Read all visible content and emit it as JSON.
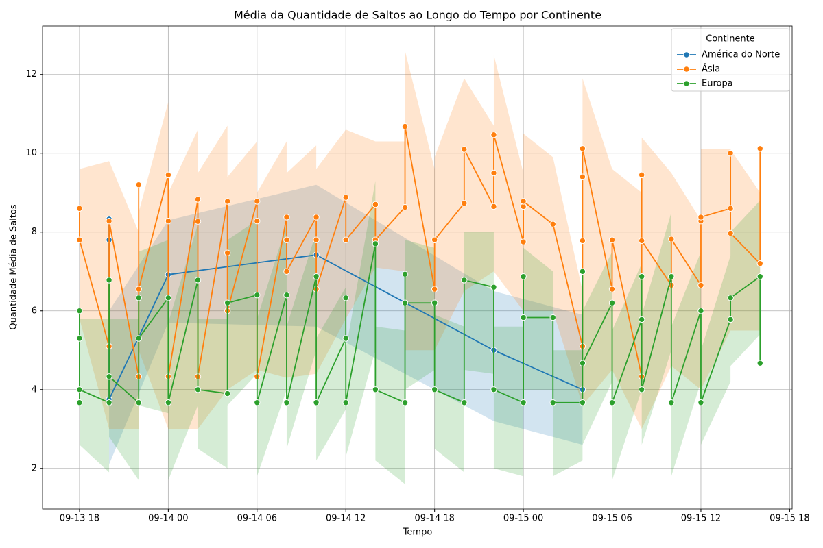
{
  "chart_data": {
    "type": "line",
    "title": "Média da Quantidade de Saltos ao Longo do Tempo por Continente",
    "x_label": "Tempo",
    "y_label": "Quantidade Média de Saltos",
    "legend_title": "Continente",
    "legend": "upper right",
    "grid": true,
    "xlim": [
      "09-13 15:30",
      "09-15 18:10"
    ],
    "xticks": [
      "09-13 18",
      "09-14 00",
      "09-14 06",
      "09-14 12",
      "09-14 18",
      "09-15 00",
      "09-15 06",
      "09-15 12",
      "09-15 18"
    ],
    "ylim": [
      0.97,
      13.23
    ],
    "yticks": [
      2,
      4,
      6,
      8,
      10,
      12
    ],
    "series": [
      {
        "name": "América do Norte",
        "color": "#1f77b4",
        "x": [
          "09-13 20",
          "09-13 20",
          "09-13 20",
          "09-14 00",
          "09-14 10",
          "09-14 22",
          "09-15 04"
        ],
        "values": [
          8.33,
          7.8,
          3.75,
          6.92,
          7.42,
          5.0,
          4.0
        ],
        "ci_low": [
          2.1,
          2.1,
          2.1,
          5.7,
          5.6,
          3.2,
          2.6
        ],
        "ci_high": [
          9.8,
          9.8,
          6.0,
          8.3,
          9.2,
          6.5,
          5.9
        ]
      },
      {
        "name": "Ásia",
        "color": "#ff7f0e",
        "x": [
          "09-13 18",
          "09-13 18",
          "09-13 20",
          "09-13 20",
          "09-13 22",
          "09-13 22",
          "09-13 22",
          "09-14 00",
          "09-14 00",
          "09-14 00",
          "09-14 02",
          "09-14 02",
          "09-14 02",
          "09-14 04",
          "09-14 04",
          "09-14 04",
          "09-14 06",
          "09-14 06",
          "09-14 06",
          "09-14 08",
          "09-14 08",
          "09-14 08",
          "09-14 10",
          "09-14 10",
          "09-14 10",
          "09-14 12",
          "09-14 12",
          "09-14 14",
          "09-14 14",
          "09-14 16",
          "09-14 16",
          "09-14 18",
          "09-14 18",
          "09-14 20",
          "09-14 20",
          "09-14 22",
          "09-14 22",
          "09-14 22",
          "09-15 00",
          "09-15 00",
          "09-15 00",
          "09-15 02",
          "09-15 04",
          "09-15 04",
          "09-15 04",
          "09-15 04",
          "09-15 06",
          "09-15 06",
          "09-15 08",
          "09-15 08",
          "09-15 08",
          "09-15 10",
          "09-15 10",
          "09-15 12",
          "09-15 12",
          "09-15 12",
          "09-15 14",
          "09-15 14",
          "09-15 14",
          "09-15 16",
          "09-15 16"
        ],
        "values": [
          8.6,
          7.8,
          5.1,
          8.28,
          4.33,
          9.2,
          6.55,
          9.45,
          8.28,
          4.33,
          8.83,
          8.27,
          4.33,
          8.78,
          7.47,
          6.0,
          8.78,
          8.28,
          4.33,
          8.38,
          7.8,
          7.0,
          8.38,
          7.8,
          6.55,
          8.88,
          7.8,
          8.7,
          7.8,
          8.63,
          10.68,
          6.55,
          7.8,
          8.73,
          10.1,
          8.65,
          9.5,
          10.47,
          7.75,
          8.65,
          8.78,
          8.2,
          5.1,
          7.78,
          9.4,
          10.12,
          6.55,
          7.8,
          4.33,
          9.45,
          7.78,
          6.65,
          7.82,
          6.65,
          8.28,
          8.38,
          8.6,
          10.0,
          7.97,
          7.2,
          10.12
        ],
        "ci_low": [
          5.8,
          5.8,
          3.0,
          3.0,
          3.0,
          5.0,
          5.0,
          3.0,
          3.0,
          3.0,
          3.0,
          3.0,
          3.0,
          4.0,
          4.0,
          4.0,
          4.5,
          4.5,
          4.5,
          4.3,
          4.3,
          4.3,
          4.4,
          4.4,
          4.4,
          5.8,
          5.8,
          7.1,
          7.1,
          7.0,
          5.0,
          5.0,
          5.0,
          6.5,
          6.5,
          7.0,
          7.0,
          7.0,
          6.0,
          6.0,
          6.0,
          6.0,
          3.6,
          3.6,
          3.6,
          3.6,
          4.5,
          4.5,
          3.0,
          3.0,
          3.0,
          4.6,
          4.6,
          4.0,
          4.0,
          4.0,
          5.5,
          5.5,
          5.5,
          5.5,
          5.5
        ],
        "ci_high": [
          10,
          9.6,
          9.8,
          9.8,
          8.0,
          11,
          8.5,
          11.3,
          11.3,
          9.0,
          10.6,
          10.6,
          9.5,
          10.7,
          9.4,
          9.4,
          10.3,
          10.3,
          9.0,
          10.3,
          9.8,
          9.5,
          10.2,
          10.2,
          9.6,
          10.6,
          10.6,
          10.3,
          10.3,
          10.3,
          12.6,
          9.6,
          9.9,
          11.9,
          11.9,
          10.7,
          12.5,
          12.5,
          9.5,
          10.5,
          10.5,
          9.9,
          6.5,
          9.0,
          11.9,
          11.9,
          9.6,
          9.6,
          9.0,
          11.5,
          10.4,
          9.5,
          9.5,
          8.3,
          10.1,
          10.1,
          10.1,
          11.7,
          10.1,
          9.0,
          11.5
        ]
      },
      {
        "name": "Europa",
        "color": "#2ca02c",
        "x": [
          "09-13 18",
          "09-13 18",
          "09-13 18",
          "09-13 18",
          "09-13 20",
          "09-13 20",
          "09-13 20",
          "09-13 22",
          "09-13 22",
          "09-13 22",
          "09-14 00",
          "09-14 00",
          "09-14 02",
          "09-14 02",
          "09-14 04",
          "09-14 04",
          "09-14 06",
          "09-14 06",
          "09-14 08",
          "09-14 08",
          "09-14 10",
          "09-14 10",
          "09-14 12",
          "09-14 12",
          "09-14 12",
          "09-14 14",
          "09-14 14",
          "09-14 16",
          "09-14 16",
          "09-14 16",
          "09-14 18",
          "09-14 18",
          "09-14 20",
          "09-14 20",
          "09-14 22",
          "09-14 22",
          "09-15 00",
          "09-15 00",
          "09-15 00",
          "09-15 02",
          "09-15 02",
          "09-15 04",
          "09-15 04",
          "09-15 04",
          "09-15 06",
          "09-15 06",
          "09-15 08",
          "09-15 08",
          "09-15 08",
          "09-15 10",
          "09-15 10",
          "09-15 12",
          "09-15 12",
          "09-15 14",
          "09-15 14",
          "09-15 16",
          "09-15 16"
        ],
        "values": [
          6.0,
          5.3,
          3.67,
          4.0,
          3.67,
          6.78,
          4.33,
          3.67,
          6.33,
          5.3,
          6.33,
          3.67,
          6.78,
          4.0,
          3.9,
          6.2,
          6.4,
          3.67,
          6.4,
          3.67,
          6.87,
          3.67,
          5.3,
          6.33,
          3.67,
          7.7,
          4.0,
          3.67,
          6.93,
          6.2,
          6.2,
          4.0,
          3.67,
          6.78,
          6.6,
          4.0,
          3.67,
          6.87,
          5.83,
          5.83,
          3.67,
          3.67,
          7.0,
          4.67,
          6.2,
          3.67,
          5.78,
          6.87,
          4.0,
          6.87,
          3.67,
          6.0,
          3.67,
          5.78,
          6.33,
          6.87,
          4.67
        ],
        "ci_low": [
          2.6,
          2.6,
          1.9,
          2.6,
          1.9,
          3.0,
          2.8,
          1.7,
          3.6,
          3.6,
          3.4,
          1.7,
          3.6,
          2.5,
          2.0,
          3.6,
          4.4,
          1.8,
          4.0,
          2.5,
          5.0,
          2.2,
          3.5,
          4.4,
          2.3,
          5.0,
          2.2,
          1.6,
          5.0,
          4.0,
          4.5,
          2.5,
          1.9,
          4.5,
          4.4,
          2.0,
          1.8,
          4.5,
          4.0,
          4.0,
          1.8,
          2.2,
          5.3,
          2.6,
          4.2,
          1.7,
          4.0,
          5.4,
          2.6,
          5.0,
          1.8,
          4.2,
          2.6,
          4.2,
          4.6,
          5.4,
          3.2
        ],
        "ci_high": [
          8.0,
          7.5,
          5.8,
          5.8,
          5.8,
          8.2,
          5.8,
          5.8,
          8.3,
          7.5,
          7.8,
          5.7,
          8.2,
          5.8,
          5.8,
          7.8,
          8.3,
          5.8,
          8.2,
          5.6,
          8.0,
          5.3,
          6.6,
          7.7,
          5.0,
          9.3,
          5.6,
          5.5,
          8.4,
          7.8,
          7.6,
          5.9,
          5.6,
          8.0,
          8.0,
          5.6,
          5.6,
          8.0,
          7.6,
          7.0,
          5.0,
          5.0,
          8.3,
          6.0,
          7.5,
          5.5,
          7.2,
          8.0,
          5.9,
          8.5,
          5.6,
          7.5,
          5.0,
          7.4,
          8.0,
          8.8,
          6.0
        ]
      }
    ]
  }
}
